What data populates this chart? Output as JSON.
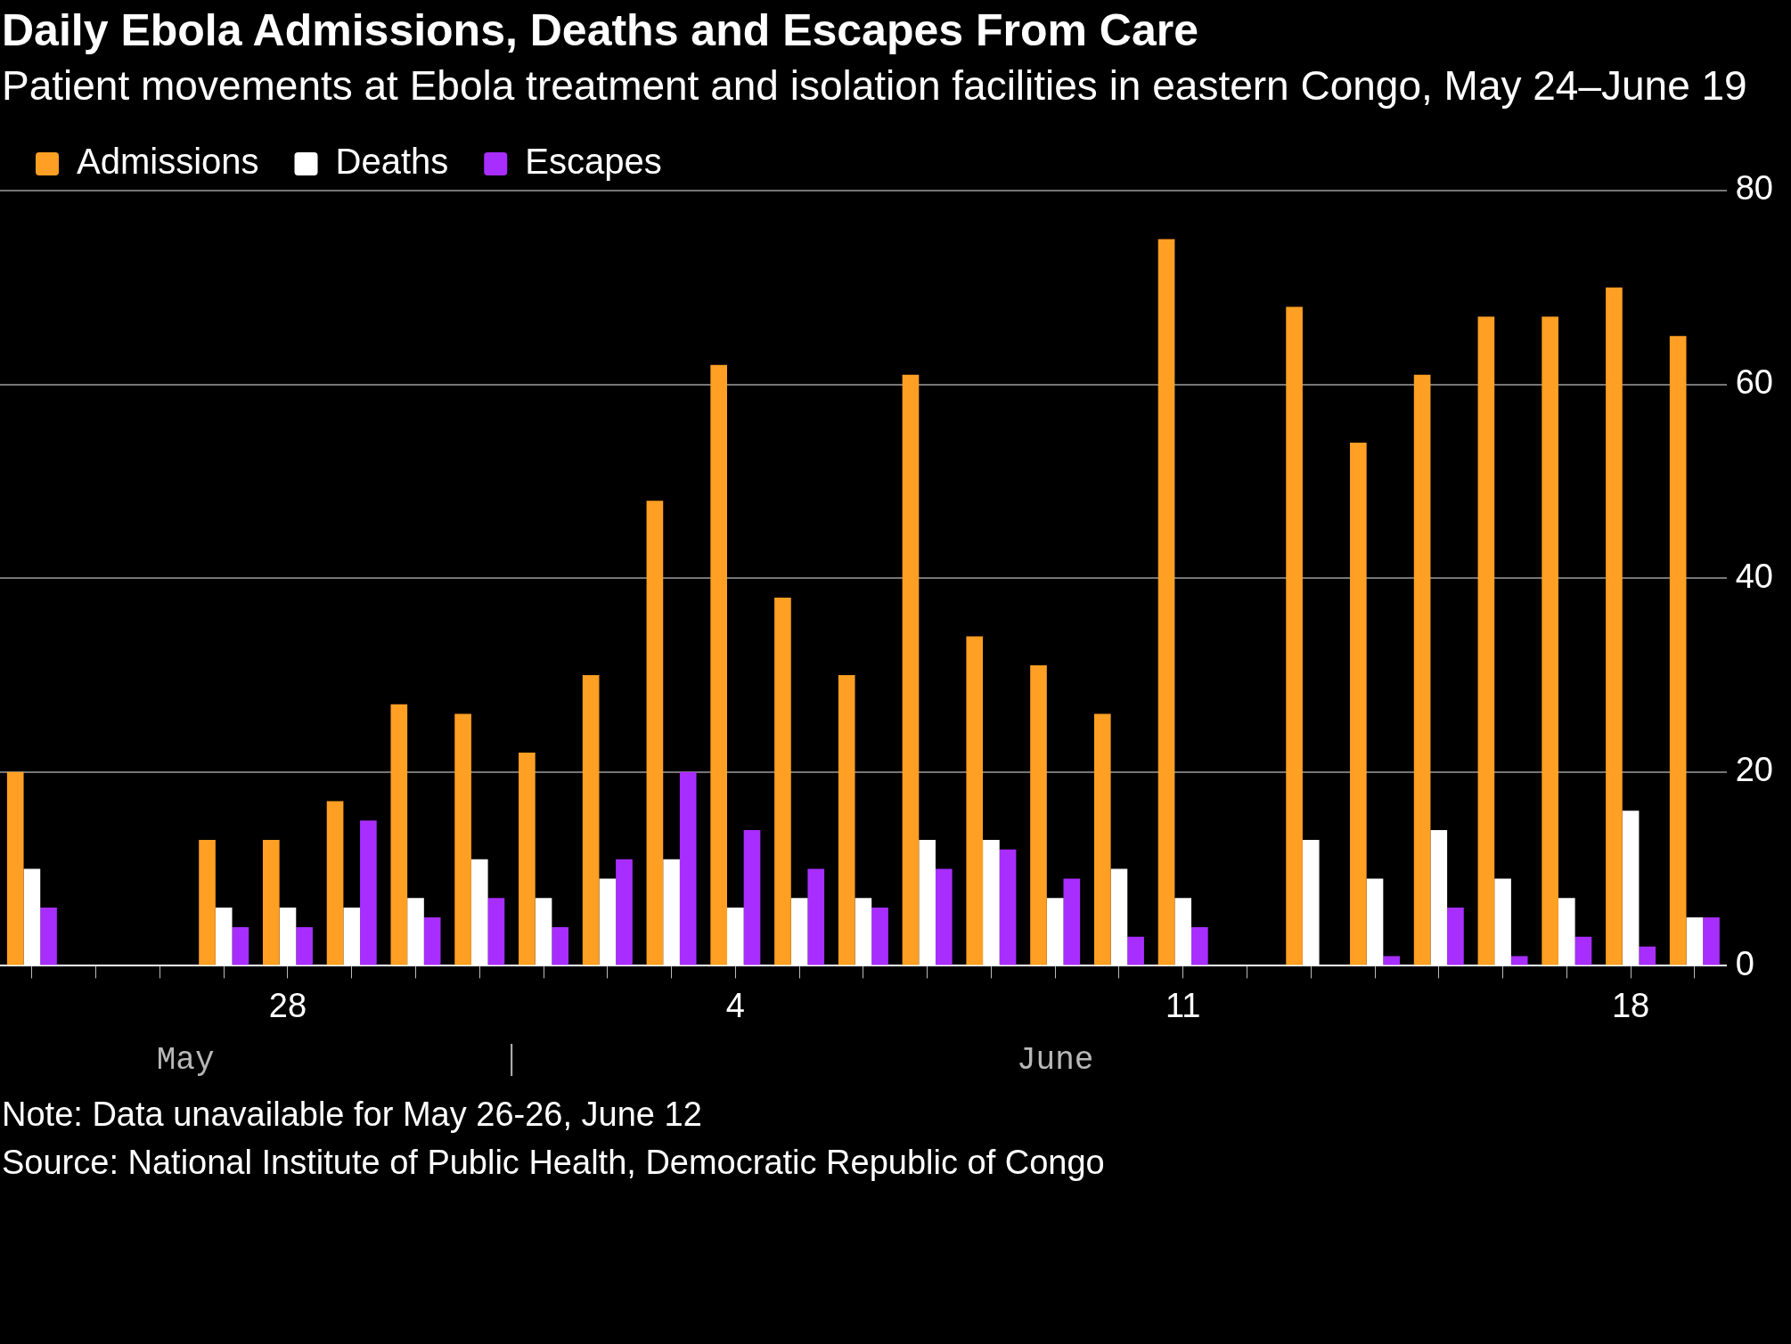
{
  "chart_data": {
    "type": "bar",
    "title": "Daily Ebola Admissions, Deaths and Escapes From Care",
    "subtitle": "Patient movements at Ebola treatment and isolation facilities in eastern Congo, May 24–June 19",
    "categories": [
      null,
      null,
      null,
      null,
      "28",
      null,
      null,
      null,
      null,
      null,
      null,
      "4",
      null,
      null,
      null,
      null,
      null,
      null,
      "11",
      null,
      null,
      null,
      null,
      null,
      null,
      "18",
      null
    ],
    "series": [
      {
        "name": "Admissions",
        "color": "#ff9f23",
        "values": [
          20,
          null,
          null,
          13,
          13,
          17,
          27,
          26,
          22,
          30,
          48,
          62,
          38,
          30,
          61,
          34,
          31,
          26,
          75,
          null,
          68,
          54,
          61,
          67,
          67,
          70,
          65
        ]
      },
      {
        "name": "Deaths",
        "color": "#ffffff",
        "values": [
          10,
          null,
          null,
          6,
          6,
          6,
          7,
          11,
          7,
          9,
          11,
          6,
          7,
          7,
          13,
          13,
          7,
          10,
          7,
          null,
          13,
          9,
          14,
          9,
          7,
          16,
          5
        ]
      },
      {
        "name": "Escapes",
        "color": "#a82eff",
        "values": [
          6,
          null,
          null,
          4,
          4,
          15,
          5,
          7,
          4,
          11,
          20,
          14,
          10,
          6,
          10,
          12,
          9,
          3,
          4,
          null,
          0,
          1,
          6,
          1,
          3,
          2,
          5
        ]
      }
    ],
    "ylim": [
      0,
      80
    ],
    "yticks": [
      0,
      20,
      40,
      60,
      80
    ],
    "grid": "y",
    "legend": "top left",
    "annotations": [
      "May",
      "June",
      "Note: Data unavailable for May 26-26, June 12",
      "Source: National Institute of Public Health, Democratic Republic of Congo"
    ]
  }
}
